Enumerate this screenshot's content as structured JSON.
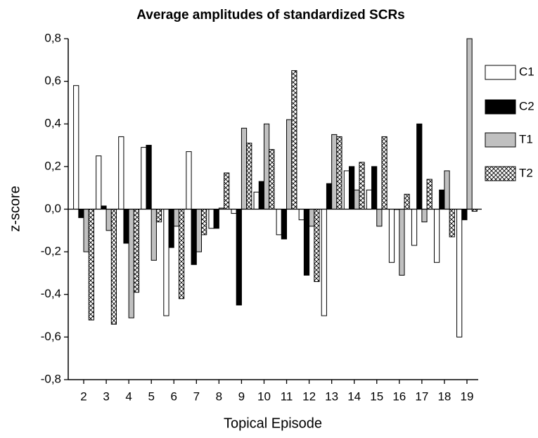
{
  "chart_data": {
    "type": "bar",
    "title": "Average amplitudes of standardized SCRs",
    "x_label": "Topical Episode",
    "y_label": "z-score",
    "categories": [
      "2",
      "3",
      "4",
      "5",
      "6",
      "7",
      "8",
      "9",
      "10",
      "11",
      "12",
      "13",
      "14",
      "15",
      "16",
      "17",
      "18",
      "19"
    ],
    "series": [
      {
        "name": "C1",
        "color": "#ffffff",
        "values": [
          0.58,
          0.25,
          0.34,
          0.29,
          -0.5,
          0.27,
          -0.09,
          -0.02,
          0.08,
          -0.12,
          -0.05,
          -0.5,
          0.18,
          0.09,
          -0.25,
          -0.17,
          -0.25,
          -0.6
        ]
      },
      {
        "name": "C2",
        "color": "#000000",
        "values": [
          -0.04,
          0.015,
          -0.16,
          0.3,
          -0.18,
          -0.26,
          -0.09,
          -0.45,
          0.13,
          -0.14,
          -0.31,
          0.12,
          0.2,
          0.2,
          0.0,
          0.4,
          0.09,
          -0.05
        ]
      },
      {
        "name": "T1",
        "color": "#c0c0c0",
        "values": [
          -0.2,
          -0.1,
          -0.51,
          -0.24,
          -0.08,
          -0.2,
          0.005,
          0.38,
          0.4,
          0.42,
          -0.08,
          0.35,
          0.09,
          -0.08,
          -0.31,
          -0.06,
          0.18,
          0.8
        ]
      },
      {
        "name": "T2",
        "color": "#ffffff",
        "pattern": "crosshatch",
        "values": [
          -0.52,
          -0.54,
          -0.39,
          -0.06,
          -0.42,
          -0.12,
          0.17,
          0.31,
          0.28,
          0.65,
          -0.34,
          0.34,
          0.22,
          0.34,
          0.07,
          0.14,
          -0.13,
          -0.01
        ]
      }
    ],
    "ylim": [
      -0.8,
      0.8
    ],
    "yticks": [
      {
        "value": -0.8,
        "label": "-0,8"
      },
      {
        "value": -0.6,
        "label": "-0,6"
      },
      {
        "value": -0.4,
        "label": "-0,4"
      },
      {
        "value": -0.2,
        "label": "-0,2"
      },
      {
        "value": 0,
        "label": "0,0"
      },
      {
        "value": 0.2,
        "label": "0,2"
      },
      {
        "value": 0.4,
        "label": "0,4"
      },
      {
        "value": 0.6,
        "label": "0,6"
      },
      {
        "value": 0.8,
        "label": "0,8"
      }
    ],
    "legend": "right"
  }
}
